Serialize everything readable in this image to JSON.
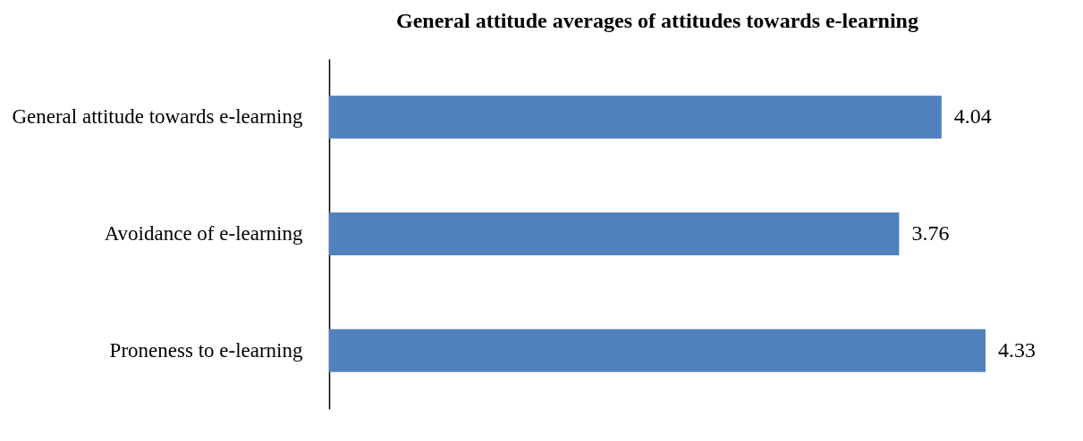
{
  "chart_data": {
    "type": "bar",
    "orientation": "horizontal",
    "title": "General attitude averages of attitudes towards e-learning",
    "categories": [
      "General attitude towards e-learning",
      "Avoidance of e-learning",
      "Proneness to e-learning"
    ],
    "values": [
      4.04,
      3.76,
      4.33
    ],
    "color": "#4f81bd",
    "data_labels": true,
    "grid": false,
    "tick_labels": "y"
  }
}
